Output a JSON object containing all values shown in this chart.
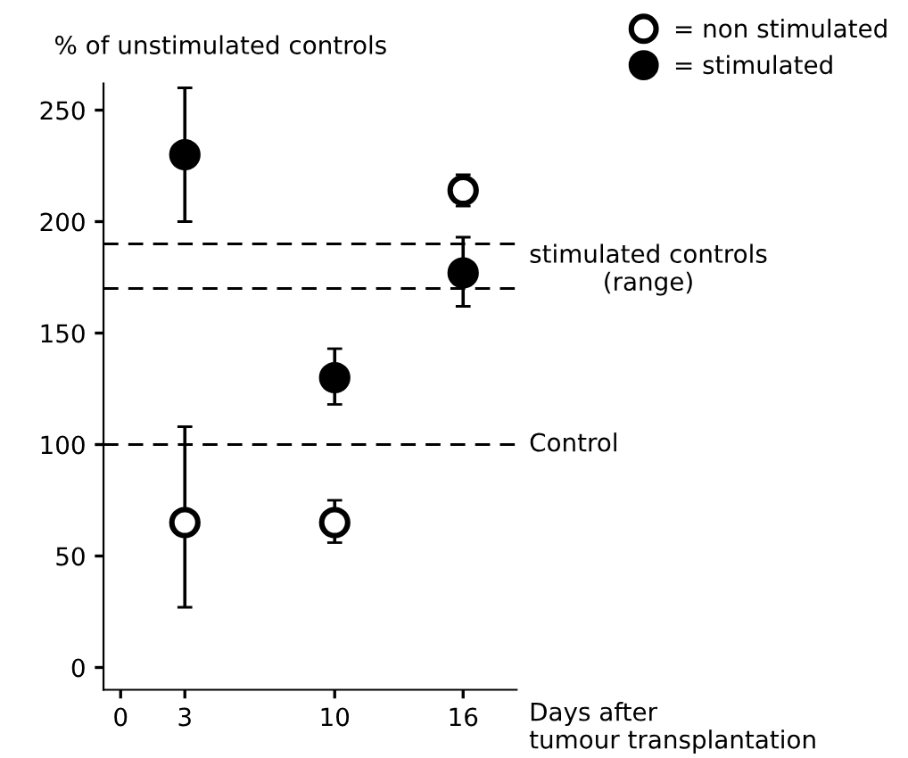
{
  "chart_data": {
    "type": "scatter",
    "ylabel": "% of unstimulated controls",
    "xlabel": "Days after\ntumour transplantation",
    "ylim": [
      -10,
      262
    ],
    "yticks": [
      0,
      50,
      100,
      150,
      200,
      250
    ],
    "xlim": [
      -0.8,
      18.5
    ],
    "xticks": [
      0,
      3,
      10,
      16
    ],
    "grid": false,
    "legend": "top right",
    "marker": "circle",
    "series": [
      {
        "name": "= non stimulated",
        "color": "#ffffff",
        "x": [
          3,
          10,
          16
        ],
        "values": [
          65,
          65,
          214
        ],
        "errors": [
          [
            27,
            108
          ],
          [
            56,
            75
          ],
          [
            207,
            221
          ]
        ]
      },
      {
        "name": "= stimulated",
        "color": "#000000",
        "x": [
          3,
          10,
          16
        ],
        "values": [
          230,
          130,
          177
        ],
        "errors": [
          [
            200,
            260
          ],
          [
            118,
            143
          ],
          [
            162,
            193
          ]
        ]
      }
    ],
    "ref_lines": [
      {
        "axis": "y",
        "value": 190,
        "label": "stimulated controls\n(range)",
        "line_style": "dashed"
      },
      {
        "axis": "y",
        "value": 170,
        "label": null,
        "line_style": "dashed"
      },
      {
        "axis": "y",
        "value": 100,
        "label": "Control",
        "line_style": "dashed"
      }
    ]
  }
}
